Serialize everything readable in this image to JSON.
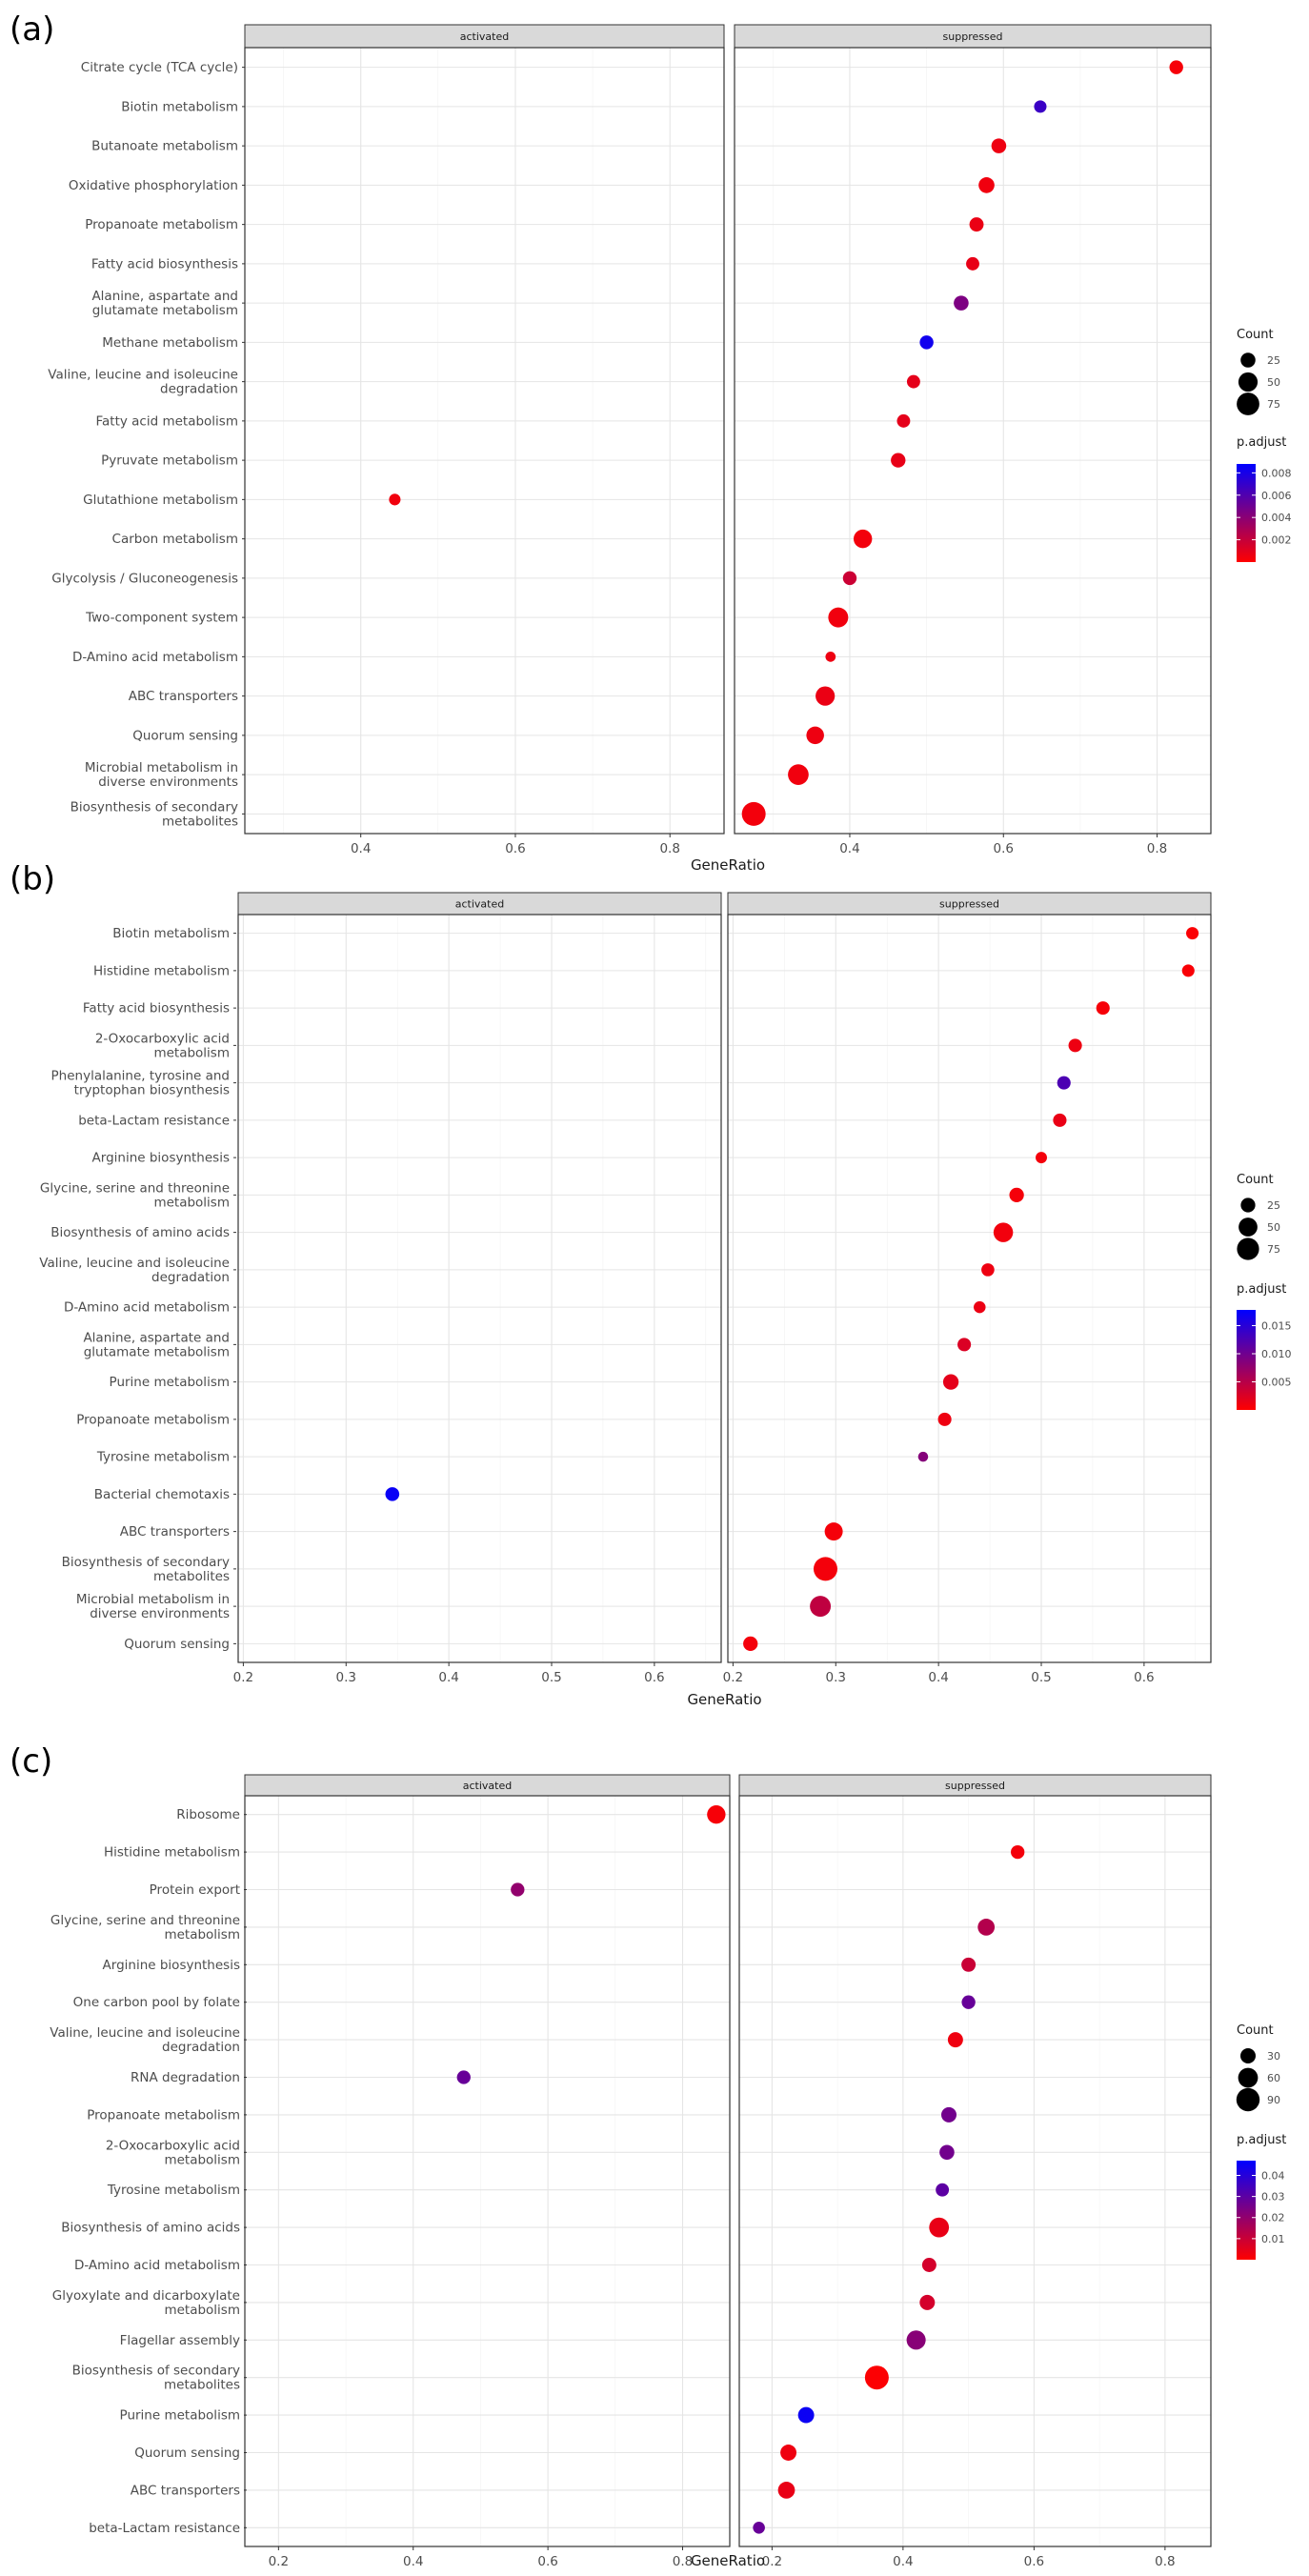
{
  "chart_data": [
    {
      "panel_label": "(a)",
      "type": "scatter",
      "subtype": "dotplot",
      "facets": [
        "activated",
        "suppressed"
      ],
      "xlabel": "GeneRatio",
      "ylabel": "",
      "xlim": [
        0.25,
        0.87
      ],
      "xticks": [
        "0.4",
        "0.6",
        "0.8"
      ],
      "categories": [
        "Citrate cycle (TCA cycle)",
        "Biotin metabolism",
        "Butanoate metabolism",
        "Oxidative phosphorylation",
        "Propanoate metabolism",
        "Fatty acid biosynthesis",
        "Alanine, aspartate and glutamate metabolism",
        "Methane metabolism",
        "Valine, leucine and isoleucine degradation",
        "Fatty acid metabolism",
        "Pyruvate metabolism",
        "Glutathione metabolism",
        "Carbon metabolism",
        "Glycolysis / Gluconeogenesis",
        "Two-component system",
        "D-Amino acid metabolism",
        "ABC transporters",
        "Quorum sensing",
        "Microbial metabolism in diverse environments",
        "Biosynthesis of secondary metabolites"
      ],
      "points": [
        {
          "term": "Citrate cycle (TCA cycle)",
          "facet": "suppressed",
          "x": 0.825,
          "count": 20,
          "padj": 0.0003
        },
        {
          "term": "Biotin metabolism",
          "facet": "suppressed",
          "x": 0.648,
          "count": 15,
          "padj": 0.0068
        },
        {
          "term": "Butanoate metabolism",
          "facet": "suppressed",
          "x": 0.594,
          "count": 25,
          "padj": 0.0006
        },
        {
          "term": "Oxidative phosphorylation",
          "facet": "suppressed",
          "x": 0.578,
          "count": 30,
          "padj": 0.0005
        },
        {
          "term": "Propanoate metabolism",
          "facet": "suppressed",
          "x": 0.565,
          "count": 22,
          "padj": 0.0007
        },
        {
          "term": "Fatty acid biosynthesis",
          "facet": "suppressed",
          "x": 0.56,
          "count": 18,
          "padj": 0.0008
        },
        {
          "term": "Alanine, aspartate and glutamate metabolism",
          "facet": "suppressed",
          "x": 0.545,
          "count": 25,
          "padj": 0.0045
        },
        {
          "term": "Methane metabolism",
          "facet": "suppressed",
          "x": 0.5,
          "count": 20,
          "padj": 0.0082
        },
        {
          "term": "Valine, leucine and isoleucine degradation",
          "facet": "suppressed",
          "x": 0.483,
          "count": 18,
          "padj": 0.0009
        },
        {
          "term": "Fatty acid metabolism",
          "facet": "suppressed",
          "x": 0.47,
          "count": 18,
          "padj": 0.0009
        },
        {
          "term": "Pyruvate metabolism",
          "facet": "suppressed",
          "x": 0.463,
          "count": 24,
          "padj": 0.0008
        },
        {
          "term": "Glutathione metabolism",
          "facet": "activated",
          "x": 0.444,
          "count": 12,
          "padj": 0.0005
        },
        {
          "term": "Carbon metabolism",
          "facet": "suppressed",
          "x": 0.417,
          "count": 45,
          "padj": 0.0004
        },
        {
          "term": "Glycolysis / Gluconeogenesis",
          "facet": "suppressed",
          "x": 0.4,
          "count": 20,
          "padj": 0.0018
        },
        {
          "term": "Two-component system",
          "facet": "suppressed",
          "x": 0.385,
          "count": 55,
          "padj": 0.0005
        },
        {
          "term": "D-Amino acid metabolism",
          "facet": "suppressed",
          "x": 0.375,
          "count": 8,
          "padj": 0.0006
        },
        {
          "term": "ABC transporters",
          "facet": "suppressed",
          "x": 0.368,
          "count": 50,
          "padj": 0.0007
        },
        {
          "term": "Quorum sensing",
          "facet": "suppressed",
          "x": 0.355,
          "count": 40,
          "padj": 0.0006
        },
        {
          "term": "Microbial metabolism in diverse environments",
          "facet": "suppressed",
          "x": 0.333,
          "count": 60,
          "padj": 0.0005
        },
        {
          "term": "Biosynthesis of secondary metabolites",
          "facet": "suppressed",
          "x": 0.275,
          "count": 85,
          "padj": 0.0004
        }
      ],
      "legend_count": {
        "title": "Count",
        "values": [
          25,
          50,
          75
        ],
        "labels": [
          "25",
          "50",
          "75"
        ]
      },
      "legend_padj": {
        "title": "p.adjust",
        "ticks": [
          0.002,
          0.004,
          0.006,
          0.008
        ],
        "labels": [
          "0.002",
          "0.004",
          "0.006",
          "0.008"
        ],
        "range": [
          0.0,
          0.0088
        ]
      }
    },
    {
      "panel_label": "(b)",
      "type": "scatter",
      "subtype": "dotplot",
      "facets": [
        "activated",
        "suppressed"
      ],
      "xlabel": "GeneRatio",
      "ylabel": "",
      "xlim": [
        0.195,
        0.665
      ],
      "xticks": [
        "0.2",
        "0.3",
        "0.4",
        "0.5",
        "0.6"
      ],
      "categories": [
        "Biotin metabolism",
        "Histidine metabolism",
        "Fatty acid biosynthesis",
        "2-Oxocarboxylic acid metabolism",
        "Phenylalanine, tyrosine and tryptophan biosynthesis",
        "beta-Lactam resistance",
        "Arginine biosynthesis",
        "Glycine, serine and threonine metabolism",
        "Biosynthesis of amino acids",
        "Valine, leucine and isoleucine degradation",
        "D-Amino acid metabolism",
        "Alanine, aspartate and glutamate metabolism",
        "Purine metabolism",
        "Propanoate metabolism",
        "Tyrosine metabolism",
        "Bacterial chemotaxis",
        "ABC transporters",
        "Biosynthesis of secondary metabolites",
        "Microbial metabolism in diverse environments",
        "Quorum sensing"
      ],
      "points": [
        {
          "term": "Biotin metabolism",
          "facet": "suppressed",
          "x": 0.647,
          "count": 16,
          "padj": 0.0003
        },
        {
          "term": "Histidine metabolism",
          "facet": "suppressed",
          "x": 0.643,
          "count": 16,
          "padj": 0.0004
        },
        {
          "term": "Fatty acid biosynthesis",
          "facet": "suppressed",
          "x": 0.56,
          "count": 20,
          "padj": 0.0006
        },
        {
          "term": "2-Oxocarboxylic acid metabolism",
          "facet": "suppressed",
          "x": 0.533,
          "count": 20,
          "padj": 0.0012
        },
        {
          "term": "Phenylalanine, tyrosine and tryptophan biosynthesis",
          "facet": "suppressed",
          "x": 0.522,
          "count": 20,
          "padj": 0.0125
        },
        {
          "term": "beta-Lactam resistance",
          "facet": "suppressed",
          "x": 0.518,
          "count": 20,
          "padj": 0.0015
        },
        {
          "term": "Arginine biosynthesis",
          "facet": "suppressed",
          "x": 0.5,
          "count": 12,
          "padj": 0.0008
        },
        {
          "term": "Glycine, serine and threonine metabolism",
          "facet": "suppressed",
          "x": 0.476,
          "count": 25,
          "padj": 0.0007
        },
        {
          "term": "Biosynthesis of amino acids",
          "facet": "suppressed",
          "x": 0.463,
          "count": 55,
          "padj": 0.0009
        },
        {
          "term": "Valine, leucine and isoleucine degradation",
          "facet": "suppressed",
          "x": 0.448,
          "count": 18,
          "padj": 0.0012
        },
        {
          "term": "D-Amino acid metabolism",
          "facet": "suppressed",
          "x": 0.44,
          "count": 14,
          "padj": 0.0013
        },
        {
          "term": "Alanine, aspartate and glutamate metabolism",
          "facet": "suppressed",
          "x": 0.425,
          "count": 20,
          "padj": 0.0025
        },
        {
          "term": "Purine metabolism",
          "facet": "suppressed",
          "x": 0.412,
          "count": 30,
          "padj": 0.0018
        },
        {
          "term": "Propanoate metabolism",
          "facet": "suppressed",
          "x": 0.406,
          "count": 20,
          "padj": 0.0012
        },
        {
          "term": "Tyrosine metabolism",
          "facet": "suppressed",
          "x": 0.385,
          "count": 8,
          "padj": 0.0085
        },
        {
          "term": "Bacterial chemotaxis",
          "facet": "activated",
          "x": 0.345,
          "count": 22,
          "padj": 0.0172
        },
        {
          "term": "ABC transporters",
          "facet": "suppressed",
          "x": 0.298,
          "count": 45,
          "padj": 0.0007
        },
        {
          "term": "Biosynthesis of secondary metabolites",
          "facet": "suppressed",
          "x": 0.29,
          "count": 90,
          "padj": 0.0008
        },
        {
          "term": "Microbial metabolism in diverse environments",
          "facet": "suppressed",
          "x": 0.285,
          "count": 65,
          "padj": 0.0045
        },
        {
          "term": "Quorum sensing",
          "facet": "suppressed",
          "x": 0.217,
          "count": 25,
          "padj": 0.0008
        }
      ],
      "legend_count": {
        "title": "Count",
        "values": [
          25,
          50,
          75
        ],
        "labels": [
          "25",
          "50",
          "75"
        ]
      },
      "legend_padj": {
        "title": "p.adjust",
        "ticks": [
          0.005,
          0.01,
          0.015
        ],
        "labels": [
          "0.005",
          "0.010",
          "0.015"
        ],
        "range": [
          0.0,
          0.0178
        ]
      }
    },
    {
      "panel_label": "(c)",
      "type": "scatter",
      "subtype": "dotplot",
      "facets": [
        "activated",
        "suppressed"
      ],
      "xlabel": "GeneRatio",
      "ylabel": "",
      "xlim": [
        0.15,
        0.87
      ],
      "xticks": [
        "0.2",
        "0.4",
        "0.6",
        "0.8"
      ],
      "categories": [
        "Ribosome",
        "Histidine metabolism",
        "Protein export",
        "Glycine, serine and threonine metabolism",
        "Arginine biosynthesis",
        "One carbon pool by folate",
        "Valine, leucine and isoleucine degradation",
        "RNA degradation",
        "Propanoate metabolism",
        "2-Oxocarboxylic acid metabolism",
        "Tyrosine metabolism",
        "Biosynthesis of amino acids",
        "D-Amino acid metabolism",
        "Glyoxylate and dicarboxylate metabolism",
        "Flagellar assembly",
        "Biosynthesis of secondary metabolites",
        "Purine metabolism",
        "Quorum sensing",
        "ABC transporters",
        "beta-Lactam resistance"
      ],
      "points": [
        {
          "term": "Ribosome",
          "facet": "activated",
          "x": 0.85,
          "count": 50,
          "padj": 0.0015
        },
        {
          "term": "Histidine metabolism",
          "facet": "suppressed",
          "x": 0.575,
          "count": 22,
          "padj": 0.002
        },
        {
          "term": "Protein export",
          "facet": "activated",
          "x": 0.555,
          "count": 22,
          "padj": 0.02
        },
        {
          "term": "Glycine, serine and threonine metabolism",
          "facet": "suppressed",
          "x": 0.527,
          "count": 40,
          "padj": 0.014
        },
        {
          "term": "Arginine biosynthesis",
          "facet": "suppressed",
          "x": 0.5,
          "count": 25,
          "padj": 0.01
        },
        {
          "term": "One carbon pool by folate",
          "facet": "suppressed",
          "x": 0.5,
          "count": 22,
          "padj": 0.028
        },
        {
          "term": "Valine, leucine and isoleucine degradation",
          "facet": "suppressed",
          "x": 0.48,
          "count": 30,
          "padj": 0.003
        },
        {
          "term": "RNA degradation",
          "facet": "activated",
          "x": 0.475,
          "count": 22,
          "padj": 0.028
        },
        {
          "term": "Propanoate metabolism",
          "facet": "suppressed",
          "x": 0.47,
          "count": 30,
          "padj": 0.026
        },
        {
          "term": "2-Oxocarboxylic acid metabolism",
          "facet": "suppressed",
          "x": 0.467,
          "count": 28,
          "padj": 0.026
        },
        {
          "term": "Tyrosine metabolism",
          "facet": "suppressed",
          "x": 0.46,
          "count": 20,
          "padj": 0.03
        },
        {
          "term": "Biosynthesis of amino acids",
          "facet": "suppressed",
          "x": 0.455,
          "count": 60,
          "padj": 0.004
        },
        {
          "term": "D-Amino acid metabolism",
          "facet": "suppressed",
          "x": 0.44,
          "count": 25,
          "padj": 0.008
        },
        {
          "term": "Glyoxylate and dicarboxylate metabolism",
          "facet": "suppressed",
          "x": 0.437,
          "count": 30,
          "padj": 0.008
        },
        {
          "term": "Flagellar assembly",
          "facet": "suppressed",
          "x": 0.42,
          "count": 55,
          "padj": 0.022
        },
        {
          "term": "Biosynthesis of secondary metabolites",
          "facet": "suppressed",
          "x": 0.36,
          "count": 95,
          "padj": 0.0005
        },
        {
          "term": "Purine metabolism",
          "facet": "suppressed",
          "x": 0.252,
          "count": 35,
          "padj": 0.045
        },
        {
          "term": "Quorum sensing",
          "facet": "suppressed",
          "x": 0.225,
          "count": 35,
          "padj": 0.003
        },
        {
          "term": "ABC transporters",
          "facet": "suppressed",
          "x": 0.222,
          "count": 40,
          "padj": 0.004
        },
        {
          "term": "beta-Lactam resistance",
          "facet": "suppressed",
          "x": 0.18,
          "count": 15,
          "padj": 0.028
        }
      ],
      "legend_count": {
        "title": "Count",
        "values": [
          30,
          60,
          90
        ],
        "labels": [
          "30",
          "60",
          "90"
        ]
      },
      "legend_padj": {
        "title": "p.adjust",
        "ticks": [
          0.01,
          0.02,
          0.03,
          0.04
        ],
        "labels": [
          "0.01",
          "0.02",
          "0.03",
          "0.04"
        ],
        "range": [
          0.0,
          0.047
        ]
      }
    }
  ],
  "colors": {
    "low_padj": "#FF0000",
    "high_padj": "#0000FF",
    "strip_fill": "#D9D9D9",
    "strip_border": "#333333",
    "panel_border": "#333333",
    "grid_major": "#E5E5E5",
    "grid_minor": "#F2F2F2",
    "text": "#1A1A1A",
    "axis_text": "#4D4D4D"
  }
}
